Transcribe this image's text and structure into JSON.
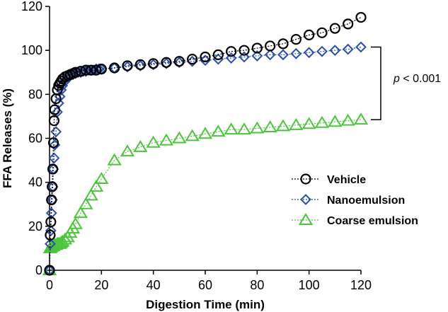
{
  "chart_data": {
    "type": "scatter",
    "title": "",
    "xlabel": "Digestion Time (min)",
    "ylabel": "FFA Releases (%)",
    "xlim": [
      0,
      120
    ],
    "ylim": [
      0,
      120
    ],
    "xticks": [
      0,
      20,
      40,
      60,
      80,
      100,
      120
    ],
    "yticks": [
      0,
      20,
      40,
      60,
      80,
      100,
      120
    ],
    "grid": false,
    "legend_position": "bottom-right",
    "annotation": {
      "text_italic": "p",
      "text_rest": " < 0.001"
    },
    "series": [
      {
        "name": "Vehicle",
        "marker": "circle",
        "color": "#000000",
        "x": [
          0,
          0.25,
          0.5,
          0.75,
          1,
          1.25,
          1.5,
          1.75,
          2,
          2.5,
          3,
          3.5,
          4,
          4.5,
          5,
          6,
          7,
          8,
          9,
          10,
          12,
          14,
          16,
          18,
          20,
          25,
          30,
          35,
          40,
          45,
          50,
          55,
          60,
          65,
          70,
          75,
          80,
          85,
          90,
          95,
          100,
          105,
          110,
          115,
          120
        ],
        "y": [
          0,
          16,
          22,
          32,
          38,
          46,
          58,
          68,
          73,
          78,
          82,
          84,
          85,
          86,
          87,
          88,
          88.5,
          89,
          89.5,
          90,
          90.5,
          91,
          91,
          91,
          91.5,
          92,
          93,
          93.5,
          94,
          94.5,
          95,
          96,
          97,
          98,
          99.5,
          100,
          101,
          102,
          103,
          105,
          107,
          108,
          110,
          112,
          115
        ]
      },
      {
        "name": "Nanoemulsion",
        "marker": "diamond",
        "color": "#2a4fa8",
        "x": [
          0,
          0.25,
          0.5,
          0.75,
          1,
          1.25,
          1.5,
          1.75,
          2,
          2.5,
          3,
          3.5,
          4,
          4.5,
          5,
          6,
          7,
          8,
          9,
          10,
          11,
          12,
          13,
          14,
          15,
          16,
          17,
          18,
          19,
          20,
          25,
          30,
          35,
          40,
          45,
          50,
          55,
          60,
          65,
          70,
          75,
          80,
          85,
          90,
          95,
          100,
          105,
          110,
          115,
          120
        ],
        "y": [
          0,
          12,
          18,
          26,
          32,
          38,
          46,
          51,
          57,
          63,
          72,
          76,
          79,
          82,
          84,
          86,
          87.5,
          88.5,
          89,
          89.5,
          90,
          90,
          90.5,
          90.5,
          91,
          91,
          91,
          91.5,
          91.5,
          91.5,
          92,
          92.5,
          93,
          93.5,
          94,
          94.5,
          95,
          95.5,
          96,
          96.5,
          97,
          97.5,
          98,
          98,
          98.5,
          99,
          99.5,
          100,
          100.5,
          101.5
        ]
      },
      {
        "name": "Coarse emulsion",
        "marker": "triangle",
        "color": "#4cc43c",
        "x": [
          0,
          0.25,
          0.5,
          0.75,
          1,
          1.25,
          1.5,
          1.75,
          2,
          2.5,
          3,
          3.5,
          4,
          4.5,
          5,
          6,
          7,
          8,
          9,
          10,
          12,
          14,
          16,
          18,
          20,
          25,
          30,
          35,
          40,
          45,
          50,
          55,
          60,
          65,
          70,
          75,
          80,
          85,
          90,
          95,
          100,
          105,
          110,
          115,
          120
        ],
        "y": [
          0,
          10,
          10.5,
          10.5,
          11,
          11,
          11,
          11.5,
          11.5,
          11.5,
          12,
          12,
          12,
          12.5,
          13,
          14,
          15,
          17,
          19,
          21,
          26,
          30,
          34,
          38,
          41.5,
          50,
          54,
          56,
          58,
          59,
          60,
          61,
          62,
          63,
          64,
          64,
          64.5,
          65,
          65.5,
          66,
          66.5,
          67,
          67.5,
          68,
          68.5
        ]
      }
    ]
  }
}
